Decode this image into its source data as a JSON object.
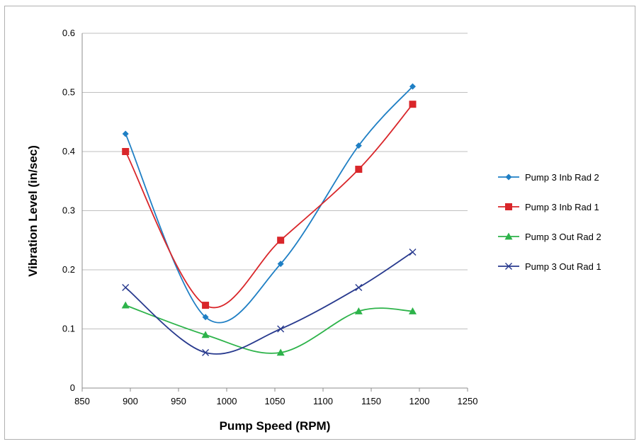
{
  "chart_data": {
    "type": "line",
    "title": "",
    "xlabel": "Pump Speed (RPM)",
    "ylabel": "Vibration Level (in/sec)",
    "xlim": [
      850,
      1250
    ],
    "ylim": [
      0,
      0.6
    ],
    "x_ticks": [
      "850",
      "900",
      "950",
      "1000",
      "1050",
      "1100",
      "1150",
      "1200",
      "1250"
    ],
    "y_ticks": [
      "0",
      "0.1",
      "0.2",
      "0.3",
      "0.4",
      "0.5",
      "0.6"
    ],
    "grid": "horizontal",
    "legend_position": "right",
    "smooth": true,
    "series": [
      {
        "name": "Pump 3 Inb Rad 2",
        "color": "#1f7fc4",
        "marker": "diamond",
        "points": [
          [
            895,
            0.43
          ],
          [
            978,
            0.12
          ],
          [
            1056,
            0.21
          ],
          [
            1137,
            0.41
          ],
          [
            1193,
            0.51
          ]
        ]
      },
      {
        "name": "Pump 3 Inb Rad 1",
        "color": "#d9262a",
        "marker": "square",
        "points": [
          [
            895,
            0.4
          ],
          [
            978,
            0.14
          ],
          [
            1056,
            0.25
          ],
          [
            1137,
            0.37
          ],
          [
            1193,
            0.48
          ]
        ]
      },
      {
        "name": "Pump 3 Out Rad 2",
        "color": "#2db34a",
        "marker": "triangle",
        "points": [
          [
            895,
            0.14
          ],
          [
            978,
            0.09
          ],
          [
            1056,
            0.06
          ],
          [
            1137,
            0.13
          ],
          [
            1193,
            0.13
          ]
        ]
      },
      {
        "name": "Pump 3 Out Rad 1",
        "color": "#283a8e",
        "marker": "x",
        "points": [
          [
            895,
            0.17
          ],
          [
            978,
            0.06
          ],
          [
            1056,
            0.1
          ],
          [
            1137,
            0.17
          ],
          [
            1193,
            0.23
          ]
        ]
      }
    ]
  }
}
